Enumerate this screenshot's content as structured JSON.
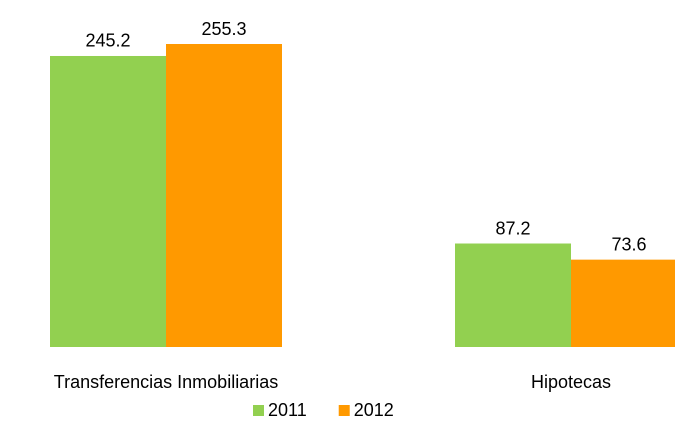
{
  "chart_data": {
    "type": "bar",
    "categories": [
      "Transferencias Inmobiliarias",
      "Hipotecas"
    ],
    "series": [
      {
        "name": "2011",
        "color": "#92d050",
        "values": [
          245.2,
          87.2
        ]
      },
      {
        "name": "2012",
        "color": "#ff9900",
        "values": [
          255.3,
          73.6
        ]
      }
    ],
    "legend": "bottom"
  }
}
